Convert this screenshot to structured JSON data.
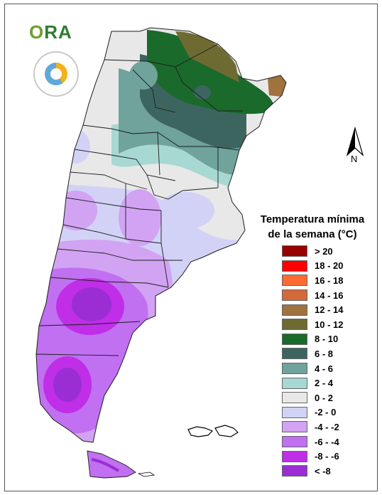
{
  "logo": {
    "text_prefix": "O",
    "text_rest": "RA"
  },
  "north_arrow": {
    "label": "N"
  },
  "legend": {
    "title_line1": "Temperatura mínima",
    "title_line2": "de la semana (°C)",
    "items": [
      {
        "label": "> 20",
        "color": "#990000"
      },
      {
        "label": "18 - 20",
        "color": "#ff0000"
      },
      {
        "label": "16 - 18",
        "color": "#ff6a33"
      },
      {
        "label": "14 - 16",
        "color": "#d4693a"
      },
      {
        "label": "12 - 14",
        "color": "#a0723e"
      },
      {
        "label": "10 - 12",
        "color": "#6e6b32"
      },
      {
        "label": "8 - 10",
        "color": "#1a6a2c"
      },
      {
        "label": "6 - 8",
        "color": "#3d6560"
      },
      {
        "label": "4 - 6",
        "color": "#6fa39c"
      },
      {
        "label": "2 - 4",
        "color": "#a8d8d2"
      },
      {
        "label": "0 - 2",
        "color": "#e8e8e8"
      },
      {
        "label": "-2 - 0",
        "color": "#d2d2f7"
      },
      {
        "label": "-4 - -2",
        "color": "#d2a3f2"
      },
      {
        "label": "-6 - -4",
        "color": "#c070f0"
      },
      {
        "label": "-8 - -6",
        "color": "#c02ee8"
      },
      {
        "label": "< -8",
        "color": "#9a2ed4"
      }
    ]
  }
}
